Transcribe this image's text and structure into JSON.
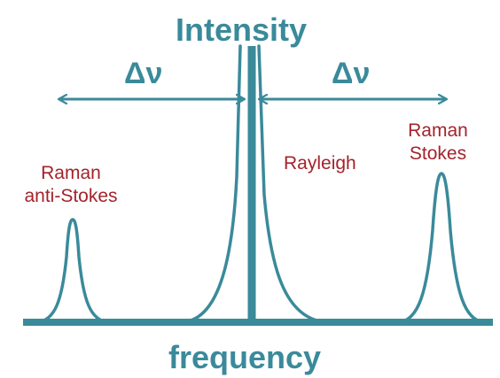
{
  "colors": {
    "teal": "#3a8a9a",
    "red": "#a3232c",
    "background": "#ffffff"
  },
  "labels": {
    "intensity": "Intensity",
    "frequency": "frequency",
    "delta_left": "Δν",
    "delta_right": "Δν",
    "rayleigh": "Rayleigh",
    "anti_stokes_line1": "Raman",
    "anti_stokes_line2": "anti-Stokes",
    "stokes_line1": "Raman",
    "stokes_line2": "Stokes"
  }
}
